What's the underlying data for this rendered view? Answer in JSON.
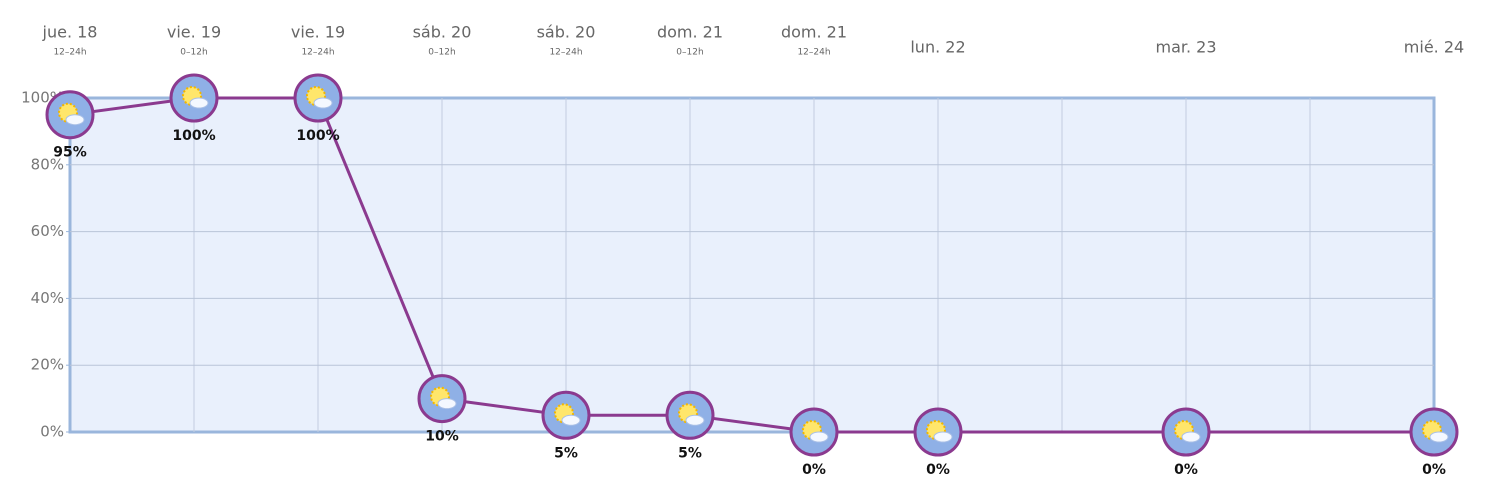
{
  "chart_data": {
    "type": "line",
    "categories": [
      "jue. 18",
      "vie. 19",
      "vie. 19",
      "sáb. 20",
      "sáb. 20",
      "dom. 21",
      "dom. 21",
      "lun. 22",
      null,
      "mar. 23",
      null,
      "mié. 24"
    ],
    "sublabels": [
      "12–24h",
      "0–12h",
      "12–24h",
      "0–12h",
      "12–24h",
      "0–12h",
      "12–24h",
      null,
      null,
      null,
      null,
      null
    ],
    "series": [
      {
        "color": "#8b3a8f",
        "values": [
          95,
          100,
          100,
          10,
          5,
          5,
          0,
          0,
          null,
          0,
          null,
          0
        ],
        "value_labels": [
          "95%",
          "100%",
          "100%",
          "10%",
          "5%",
          "5%",
          "0%",
          "0%",
          null,
          "0%",
          null,
          "0%"
        ]
      }
    ],
    "ylim": [
      0,
      100
    ],
    "yticks": [
      {
        "value": 0,
        "label": "0%"
      },
      {
        "value": 20,
        "label": "20%"
      },
      {
        "value": 40,
        "label": "40%"
      },
      {
        "value": 60,
        "label": "60%"
      },
      {
        "value": 80,
        "label": "80%"
      },
      {
        "value": 100,
        "label": "100%"
      }
    ],
    "grid": true
  }
}
